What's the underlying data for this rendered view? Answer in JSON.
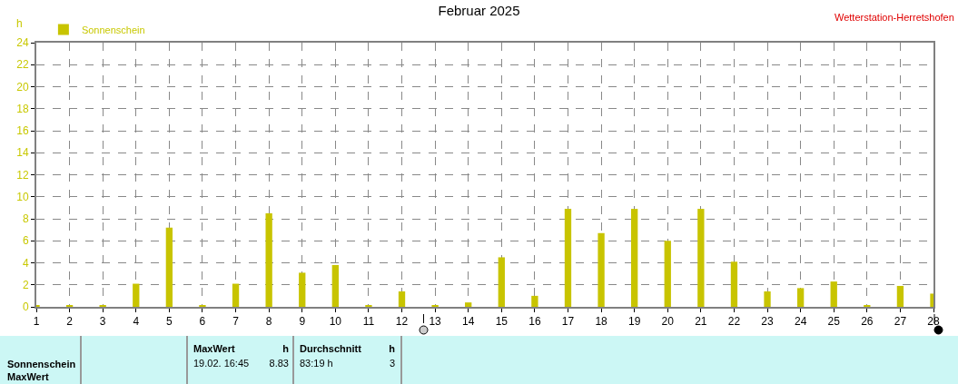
{
  "chart_data": {
    "type": "bar",
    "title": "Februar 2025",
    "ylabel": "h",
    "x": [
      1,
      2,
      3,
      4,
      5,
      6,
      7,
      8,
      9,
      10,
      11,
      12,
      13,
      14,
      15,
      16,
      17,
      18,
      19,
      20,
      21,
      22,
      23,
      24,
      25,
      26,
      27,
      28
    ],
    "series": [
      {
        "name": "Sonnenschein",
        "color": "#c8c400",
        "values": [
          0.1,
          0.1,
          0.1,
          2.1,
          7.2,
          0.1,
          2.1,
          8.5,
          3.1,
          3.8,
          0.1,
          1.4,
          0.1,
          0.4,
          4.5,
          1.0,
          8.9,
          6.7,
          8.9,
          6.0,
          8.9,
          4.1,
          1.4,
          1.7,
          2.3,
          0.1,
          1.9,
          1.2
        ]
      }
    ],
    "xlim": [
      1,
      28
    ],
    "xticks": [
      1,
      2,
      3,
      4,
      5,
      6,
      7,
      8,
      9,
      10,
      11,
      12,
      13,
      14,
      15,
      16,
      17,
      18,
      19,
      20,
      21,
      22,
      23,
      24,
      25,
      26,
      27,
      28
    ],
    "ylim": [
      0,
      24
    ],
    "yticks": [
      0,
      2,
      4,
      6,
      8,
      10,
      12,
      14,
      16,
      18,
      20,
      22,
      24
    ],
    "grid": true,
    "legend": "top left",
    "annotations": [
      "Wetterstation-Herretshofen",
      "Sonnenschein",
      "MaxWert",
      "MaxWert",
      "h",
      "19.02.  16:45",
      "8.83",
      "Durchschnitt",
      "h",
      "83:19 h",
      "3"
    ]
  }
}
